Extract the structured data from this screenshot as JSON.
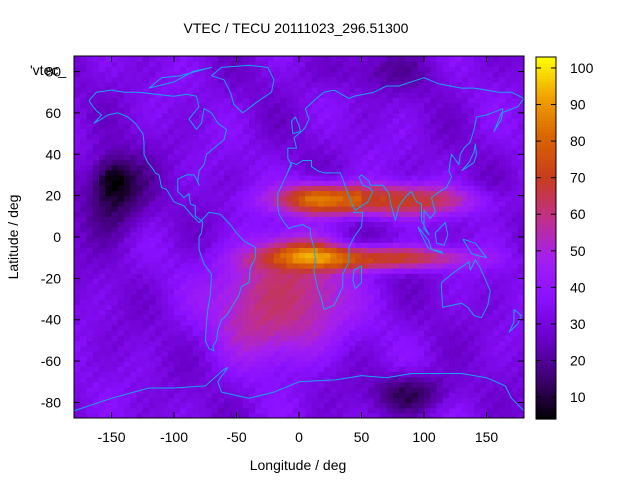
{
  "chart_data": {
    "type": "heatmap",
    "title": "VTEC / TECU 20111023_296.51300",
    "xlabel": "Longitude / deg",
    "ylabel": "Latitude / deg",
    "xlim": [
      -180,
      180
    ],
    "ylim": [
      -87.5,
      87.5
    ],
    "x_ticks": [
      -150,
      -100,
      -50,
      0,
      50,
      100,
      150
    ],
    "y_ticks": [
      -80,
      -60,
      -40,
      -20,
      0,
      20,
      40,
      60,
      80
    ],
    "colorbar": {
      "range": [
        4,
        103
      ],
      "ticks": [
        10,
        20,
        30,
        40,
        50,
        60,
        70,
        80,
        90,
        100
      ],
      "palette": [
        "#000000",
        "#3d0070",
        "#6a00c8",
        "#8a10ff",
        "#a41ff0",
        "#c0308a",
        "#c83c1e",
        "#d86400",
        "#f0a000",
        "#ffff00"
      ]
    },
    "overlay_label": "'vtec_",
    "features": [
      {
        "name": "equatorial-anomaly-north",
        "lon": [
          -15,
          140
        ],
        "lat": [
          10,
          26
        ],
        "vtec": 80
      },
      {
        "name": "equatorial-anomaly-south",
        "lon": [
          -25,
          135
        ],
        "lat": [
          -16,
          -4
        ],
        "vtec": 75
      },
      {
        "name": "southern-atlantic-high",
        "lon": [
          -70,
          40
        ],
        "lat": [
          -60,
          0
        ],
        "vtec": 62
      },
      {
        "name": "south-polar-minimum",
        "lon": [
          60,
          120
        ],
        "lat": [
          -85,
          -65
        ],
        "vtec": 12
      },
      {
        "name": "north-pacific-minimum",
        "lon": [
          -175,
          -120
        ],
        "lat": [
          0,
          40
        ],
        "vtec": 10
      },
      {
        "name": "background",
        "vtec": 32
      }
    ]
  }
}
